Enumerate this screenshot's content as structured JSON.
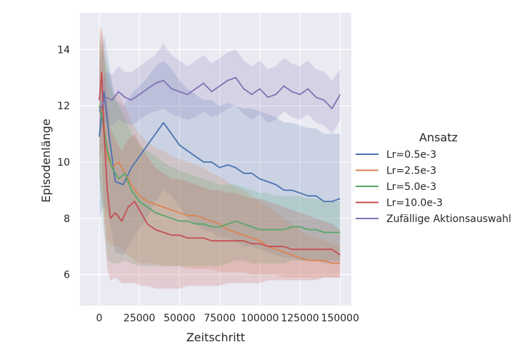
{
  "chart_data": {
    "type": "line",
    "title": "",
    "xlabel": "Zeitschritt",
    "ylabel": "Episodenlänge",
    "xlim": [
      -12000,
      157000
    ],
    "ylim": [
      4.9,
      15.3
    ],
    "xticks": [
      0,
      25000,
      50000,
      75000,
      100000,
      125000,
      150000
    ],
    "xtick_labels": [
      "0",
      "25000",
      "50000",
      "75000",
      "100000",
      "125000",
      "150000"
    ],
    "yticks": [
      6,
      8,
      10,
      12,
      14
    ],
    "ytick_labels": [
      "6",
      "8",
      "10",
      "12",
      "14"
    ],
    "grid": true,
    "background": "#eaeaf2",
    "legend": {
      "title": "Ansatz",
      "placement": "right-outside"
    },
    "series": [
      {
        "name": "Lr=0.5e-3",
        "color": "#4c72b0",
        "x": [
          0,
          3000,
          6000,
          10000,
          15000,
          20000,
          25000,
          30000,
          35000,
          40000,
          45000,
          50000,
          55000,
          60000,
          65000,
          70000,
          75000,
          80000,
          85000,
          90000,
          95000,
          100000,
          105000,
          110000,
          115000,
          120000,
          125000,
          130000,
          135000,
          140000,
          145000,
          150000
        ],
        "y": [
          10.9,
          12.5,
          11.0,
          9.3,
          9.2,
          9.8,
          10.2,
          10.6,
          11.0,
          11.4,
          11.0,
          10.6,
          10.4,
          10.2,
          10.0,
          10.0,
          9.8,
          9.9,
          9.8,
          9.6,
          9.6,
          9.4,
          9.3,
          9.2,
          9.0,
          9.0,
          8.9,
          8.8,
          8.8,
          8.6,
          8.6,
          8.7
        ],
        "lower": [
          8.0,
          8.5,
          8.0,
          6.8,
          6.7,
          7.2,
          7.6,
          8.0,
          8.6,
          9.0,
          8.8,
          8.4,
          8.0,
          7.8,
          7.6,
          7.5,
          7.3,
          7.3,
          7.2,
          7.0,
          7.0,
          6.9,
          6.8,
          6.7,
          6.6,
          6.6,
          6.5,
          6.5,
          6.5,
          6.4,
          6.4,
          6.4
        ],
        "upper": [
          13.5,
          14.5,
          13.5,
          12.2,
          12.0,
          12.4,
          12.7,
          13.0,
          13.4,
          13.6,
          13.3,
          12.9,
          12.6,
          12.4,
          12.2,
          12.2,
          12.0,
          12.1,
          12.0,
          11.9,
          11.9,
          11.8,
          11.7,
          11.6,
          11.4,
          11.4,
          11.3,
          11.2,
          11.2,
          11.0,
          11.0,
          11.0
        ]
      },
      {
        "name": "Lr=2.5e-3",
        "color": "#dd8452",
        "x": [
          0,
          2000,
          5000,
          8000,
          12000,
          16000,
          20000,
          25000,
          30000,
          35000,
          40000,
          45000,
          50000,
          55000,
          60000,
          65000,
          70000,
          75000,
          80000,
          85000,
          90000,
          95000,
          100000,
          105000,
          110000,
          115000,
          120000,
          125000,
          130000,
          135000,
          140000,
          145000,
          150000
        ],
        "y": [
          12.0,
          11.8,
          10.2,
          9.8,
          10.0,
          9.6,
          9.2,
          8.8,
          8.6,
          8.5,
          8.4,
          8.3,
          8.2,
          8.1,
          8.1,
          8.0,
          7.9,
          7.8,
          7.6,
          7.5,
          7.4,
          7.3,
          7.2,
          7.0,
          6.9,
          6.8,
          6.7,
          6.6,
          6.5,
          6.5,
          6.5,
          6.4,
          6.4
        ],
        "lower": [
          9.5,
          8.5,
          7.2,
          7.0,
          7.0,
          6.8,
          6.6,
          6.4,
          6.4,
          6.4,
          6.3,
          6.3,
          6.3,
          6.2,
          6.2,
          6.2,
          6.2,
          6.1,
          6.1,
          6.1,
          6.1,
          6.0,
          6.0,
          6.0,
          6.0,
          5.9,
          5.9,
          5.9,
          5.9,
          5.9,
          5.9,
          5.9,
          5.9
        ],
        "upper": [
          14.8,
          14.6,
          13.0,
          12.4,
          12.4,
          12.0,
          11.4,
          11.0,
          10.7,
          10.5,
          10.4,
          10.2,
          10.1,
          10.0,
          9.9,
          9.8,
          9.6,
          9.5,
          9.3,
          9.1,
          9.0,
          8.8,
          8.6,
          8.4,
          8.2,
          8.0,
          7.8,
          7.6,
          7.4,
          7.3,
          7.2,
          7.1,
          7.0
        ]
      },
      {
        "name": "Lr=5.0e-3",
        "color": "#55a868",
        "x": [
          0,
          2000,
          5000,
          8000,
          12000,
          16000,
          20000,
          25000,
          30000,
          35000,
          40000,
          45000,
          50000,
          55000,
          60000,
          65000,
          70000,
          75000,
          80000,
          85000,
          90000,
          95000,
          100000,
          105000,
          110000,
          115000,
          120000,
          125000,
          130000,
          135000,
          140000,
          145000,
          150000
        ],
        "y": [
          12.0,
          11.5,
          10.4,
          9.8,
          9.4,
          9.6,
          9.0,
          8.6,
          8.4,
          8.2,
          8.1,
          8.0,
          7.9,
          7.9,
          7.8,
          7.8,
          7.7,
          7.7,
          7.8,
          7.9,
          7.8,
          7.7,
          7.6,
          7.6,
          7.6,
          7.6,
          7.7,
          7.7,
          7.6,
          7.6,
          7.5,
          7.5,
          7.5
        ],
        "lower": [
          9.5,
          8.0,
          6.5,
          6.4,
          6.4,
          6.5,
          6.4,
          6.3,
          6.3,
          6.3,
          6.3,
          6.3,
          6.3,
          6.3,
          6.3,
          6.3,
          6.3,
          6.3,
          6.4,
          6.5,
          6.5,
          6.4,
          6.4,
          6.4,
          6.4,
          6.4,
          6.5,
          6.5,
          6.5,
          6.5,
          6.5,
          6.5,
          6.5
        ],
        "upper": [
          14.5,
          14.0,
          13.4,
          12.6,
          12.0,
          11.6,
          11.0,
          10.6,
          10.4,
          10.2,
          10.0,
          9.8,
          9.7,
          9.6,
          9.5,
          9.4,
          9.3,
          9.2,
          9.2,
          9.2,
          9.1,
          9.0,
          8.9,
          8.9,
          8.8,
          8.8,
          8.8,
          8.8,
          8.7,
          8.7,
          8.6,
          8.6,
          8.6
        ]
      },
      {
        "name": "Lr=10.0e-3",
        "color": "#c44e52",
        "x": [
          0,
          1500,
          3000,
          5000,
          7000,
          10000,
          14000,
          18000,
          22000,
          26000,
          30000,
          35000,
          40000,
          45000,
          50000,
          55000,
          60000,
          65000,
          70000,
          75000,
          80000,
          85000,
          90000,
          95000,
          100000,
          105000,
          110000,
          115000,
          120000,
          125000,
          130000,
          135000,
          140000,
          145000,
          150000
        ],
        "y": [
          12.2,
          13.2,
          11.0,
          9.0,
          8.0,
          8.2,
          7.9,
          8.4,
          8.6,
          8.2,
          7.8,
          7.6,
          7.5,
          7.4,
          7.4,
          7.3,
          7.3,
          7.3,
          7.2,
          7.2,
          7.2,
          7.2,
          7.2,
          7.1,
          7.1,
          7.0,
          7.0,
          7.0,
          6.9,
          6.9,
          6.9,
          6.9,
          6.9,
          6.9,
          6.7
        ],
        "lower": [
          10.0,
          10.5,
          8.0,
          6.2,
          5.8,
          5.9,
          5.7,
          5.7,
          5.7,
          5.6,
          5.6,
          5.5,
          5.5,
          5.5,
          5.5,
          5.6,
          5.6,
          5.6,
          5.6,
          5.6,
          5.7,
          5.7,
          5.7,
          5.7,
          5.7,
          5.8,
          5.8,
          5.8,
          5.8,
          5.8,
          5.8,
          5.8,
          5.9,
          5.9,
          5.9
        ],
        "upper": [
          13.8,
          14.8,
          13.8,
          12.2,
          11.2,
          10.8,
          10.4,
          10.8,
          11.0,
          10.6,
          10.2,
          9.8,
          9.6,
          9.4,
          9.4,
          9.3,
          9.2,
          9.1,
          9.0,
          9.0,
          8.9,
          8.9,
          8.8,
          8.7,
          8.7,
          8.6,
          8.5,
          8.4,
          8.3,
          8.2,
          8.1,
          8.0,
          7.9,
          7.8,
          7.6
        ]
      },
      {
        "name": "Zufällige Aktionsauswahl",
        "color": "#8172b3",
        "x": [
          0,
          4000,
          8000,
          12000,
          16000,
          20000,
          25000,
          30000,
          35000,
          40000,
          45000,
          50000,
          55000,
          60000,
          65000,
          70000,
          75000,
          80000,
          85000,
          90000,
          95000,
          100000,
          105000,
          110000,
          115000,
          120000,
          125000,
          130000,
          135000,
          140000,
          145000,
          150000
        ],
        "y": [
          11.8,
          12.3,
          12.2,
          12.5,
          12.3,
          12.2,
          12.4,
          12.6,
          12.8,
          12.9,
          12.6,
          12.5,
          12.4,
          12.6,
          12.8,
          12.5,
          12.7,
          12.9,
          13.0,
          12.6,
          12.4,
          12.6,
          12.3,
          12.4,
          12.7,
          12.5,
          12.4,
          12.6,
          12.3,
          12.2,
          11.9,
          12.4
        ],
        "lower": [
          11.0,
          11.4,
          11.3,
          11.5,
          11.4,
          11.3,
          11.5,
          11.7,
          11.8,
          11.9,
          11.7,
          11.6,
          11.5,
          11.6,
          11.8,
          11.6,
          11.7,
          11.9,
          12.0,
          11.7,
          11.5,
          11.7,
          11.4,
          11.5,
          11.8,
          11.6,
          11.5,
          11.7,
          11.4,
          11.3,
          11.0,
          11.5
        ],
        "upper": [
          12.6,
          13.2,
          13.1,
          13.4,
          13.2,
          13.2,
          13.4,
          13.6,
          13.8,
          14.2,
          13.8,
          13.6,
          13.4,
          13.6,
          13.8,
          13.5,
          13.7,
          13.9,
          14.0,
          13.6,
          13.4,
          13.6,
          13.3,
          13.4,
          13.7,
          13.5,
          13.4,
          13.6,
          13.3,
          13.2,
          12.9,
          13.3
        ]
      }
    ]
  }
}
